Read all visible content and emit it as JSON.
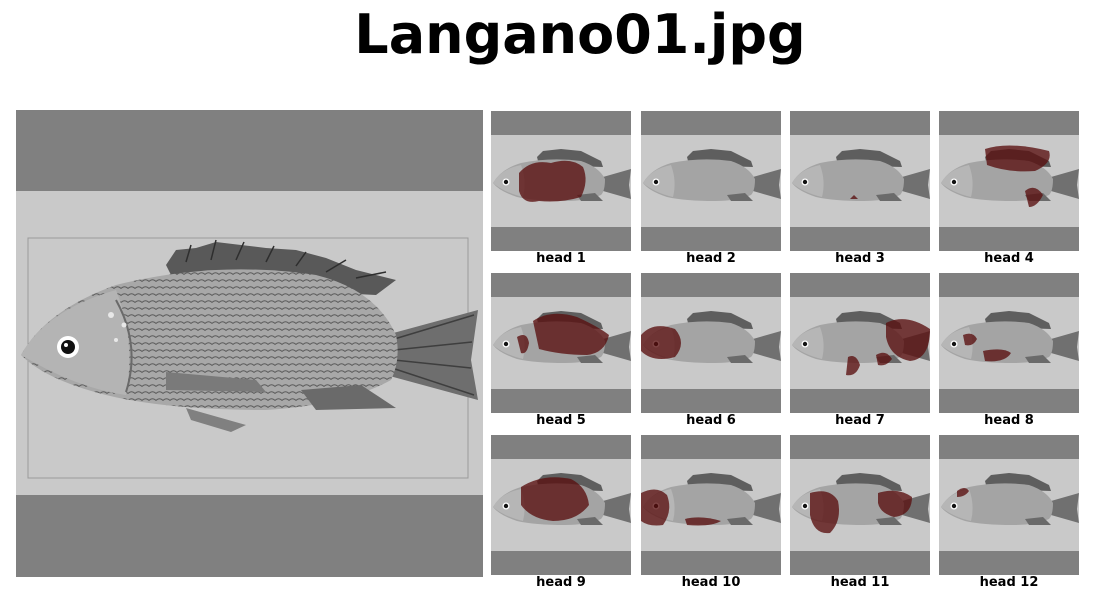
{
  "title": "Langano01.jpg",
  "main_image": {
    "alt": "fish"
  },
  "heads": [
    {
      "label": "head 1"
    },
    {
      "label": "head 2"
    },
    {
      "label": "head 3"
    },
    {
      "label": "head 4"
    },
    {
      "label": "head 5"
    },
    {
      "label": "head 6"
    },
    {
      "label": "head 7"
    },
    {
      "label": "head 8"
    },
    {
      "label": "head 9"
    },
    {
      "label": "head 10"
    },
    {
      "label": "head 11"
    },
    {
      "label": "head 12"
    }
  ],
  "colors": {
    "background": "#ffffff",
    "padding_gray": "#808080",
    "photo_gray": "#c8c8c8",
    "fish_body": "#9a9a9a",
    "attention_red": "#5a1010"
  }
}
